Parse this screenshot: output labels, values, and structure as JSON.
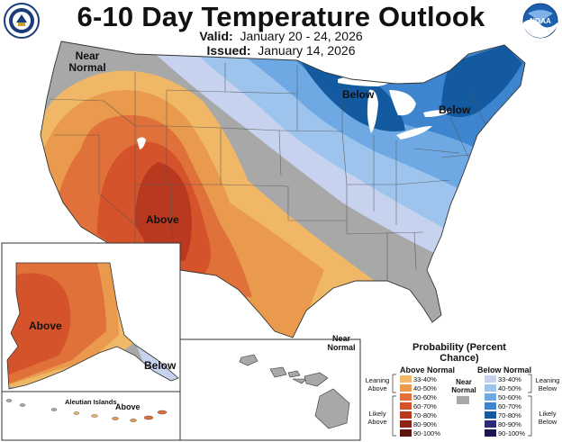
{
  "header": {
    "title": "6-10 Day Temperature Outlook",
    "valid_label": "Valid:",
    "valid_dates": "January 20 - 24, 2026",
    "issued_label": "Issued:",
    "issued_date": "January 14, 2026",
    "left_logo_icon": "department-of-commerce-seal-icon",
    "right_logo_icon": "noaa-logo-icon",
    "right_logo_text": "NOAA"
  },
  "map_labels": {
    "near_normal_pnw": "Near Normal",
    "below_great_lakes": "Below",
    "below_northeast": "Below",
    "above_southwest": "Above",
    "above_alaska": "Above",
    "below_alaska_panhandle": "Below",
    "near_normal_hawaii": "Near Normal",
    "aleutian_islands": "Aleutian Islands",
    "above_aleutians": "Above"
  },
  "legend": {
    "title": "Probability (Percent Chance)",
    "above_header": "Above Normal",
    "below_header": "Below Normal",
    "near_normal_label": "Near Normal",
    "near_normal_color": "#a8a8a8",
    "leaning_above": "Leaning Above",
    "likely_above": "Likely Above",
    "leaning_below": "Leaning Below",
    "likely_below": "Likely Below",
    "above_bins": [
      {
        "label": "33-40%",
        "color": "#f0b866"
      },
      {
        "label": "40-50%",
        "color": "#e99a4c"
      },
      {
        "label": "50-60%",
        "color": "#e0713a"
      },
      {
        "label": "60-70%",
        "color": "#d5532b"
      },
      {
        "label": "70-80%",
        "color": "#b8391f"
      },
      {
        "label": "80-90%",
        "color": "#8c2316"
      },
      {
        "label": "90-100%",
        "color": "#5c1410"
      }
    ],
    "below_bins": [
      {
        "label": "33-40%",
        "color": "#c6d2ee"
      },
      {
        "label": "40-50%",
        "color": "#9cc4ec"
      },
      {
        "label": "50-60%",
        "color": "#6fa9e3"
      },
      {
        "label": "60-70%",
        "color": "#3d86cf"
      },
      {
        "label": "70-80%",
        "color": "#135aa0"
      },
      {
        "label": "80-90%",
        "color": "#2c2a7a"
      },
      {
        "label": "90-100%",
        "color": "#1c1550"
      }
    ]
  }
}
